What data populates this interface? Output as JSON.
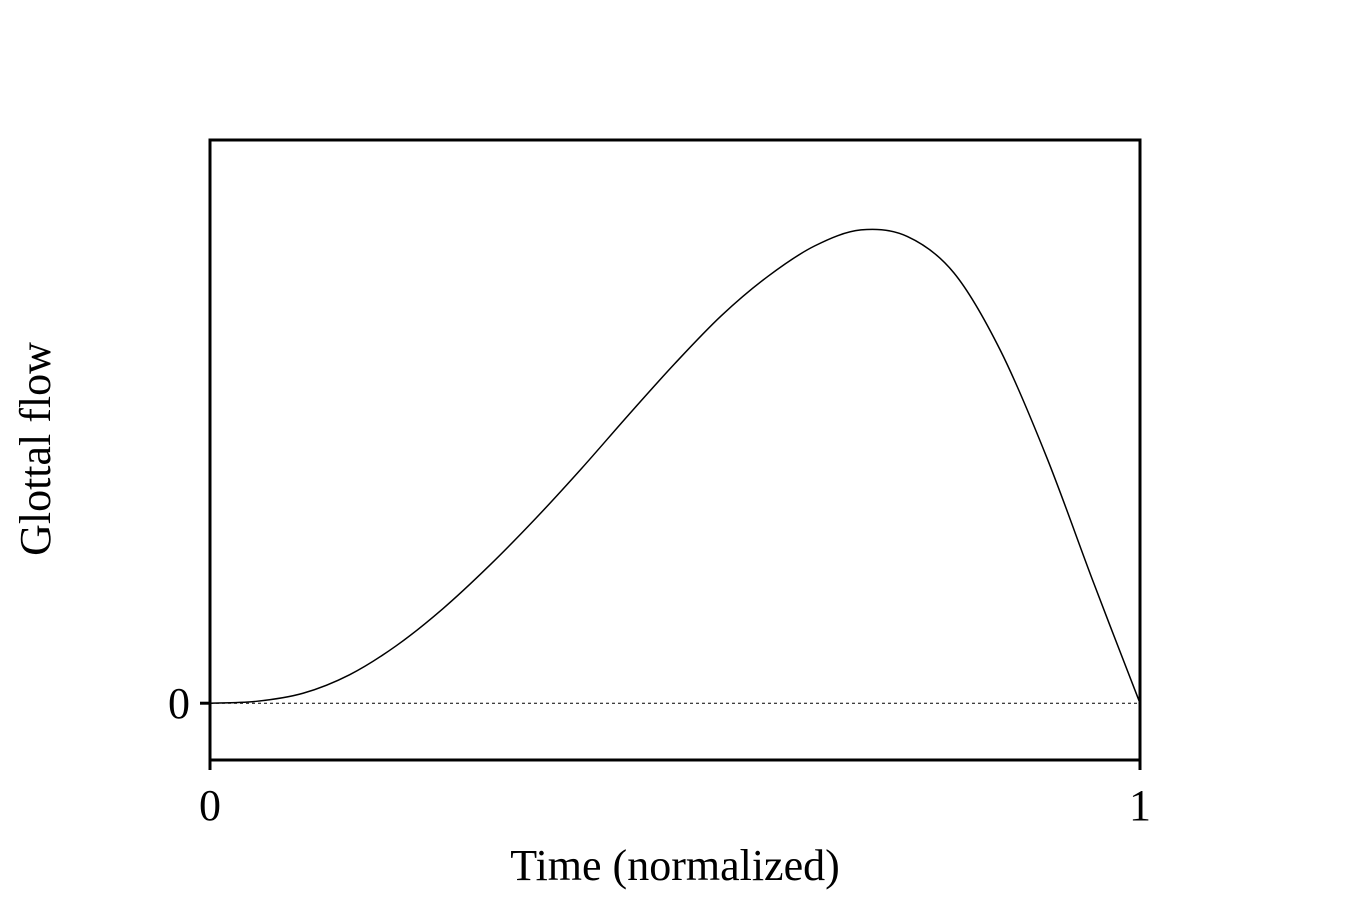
{
  "chart_data": {
    "type": "line",
    "title": "",
    "xlabel": "Time (normalized)",
    "ylabel": "Glottal flow",
    "xlim": [
      0,
      1
    ],
    "ylim": [
      -0.12,
      1.19
    ],
    "x_ticks": [
      {
        "value": 0,
        "label": "0"
      },
      {
        "value": 1,
        "label": "1"
      }
    ],
    "y_ticks": [
      {
        "value": 0,
        "label": "0"
      }
    ],
    "zero_line": {
      "style": "dotted",
      "value": 0
    },
    "grid": false,
    "legend": "none",
    "colors": {
      "line": "#000000",
      "frame": "#000000",
      "background": "#ffffff"
    },
    "series": [
      {
        "x": [
          0,
          0.05,
          0.1,
          0.15,
          0.2,
          0.25,
          0.3,
          0.35,
          0.4,
          0.45,
          0.5,
          0.55,
          0.6,
          0.65,
          0.7,
          0.75,
          0.8,
          0.85,
          0.9,
          0.95,
          1.0
        ],
        "values": [
          0,
          0.004,
          0.021,
          0.06,
          0.121,
          0.199,
          0.29,
          0.39,
          0.497,
          0.609,
          0.718,
          0.819,
          0.902,
          0.966,
          1.0,
          0.986,
          0.909,
          0.745,
          0.518,
          0.255,
          0
        ]
      }
    ]
  }
}
